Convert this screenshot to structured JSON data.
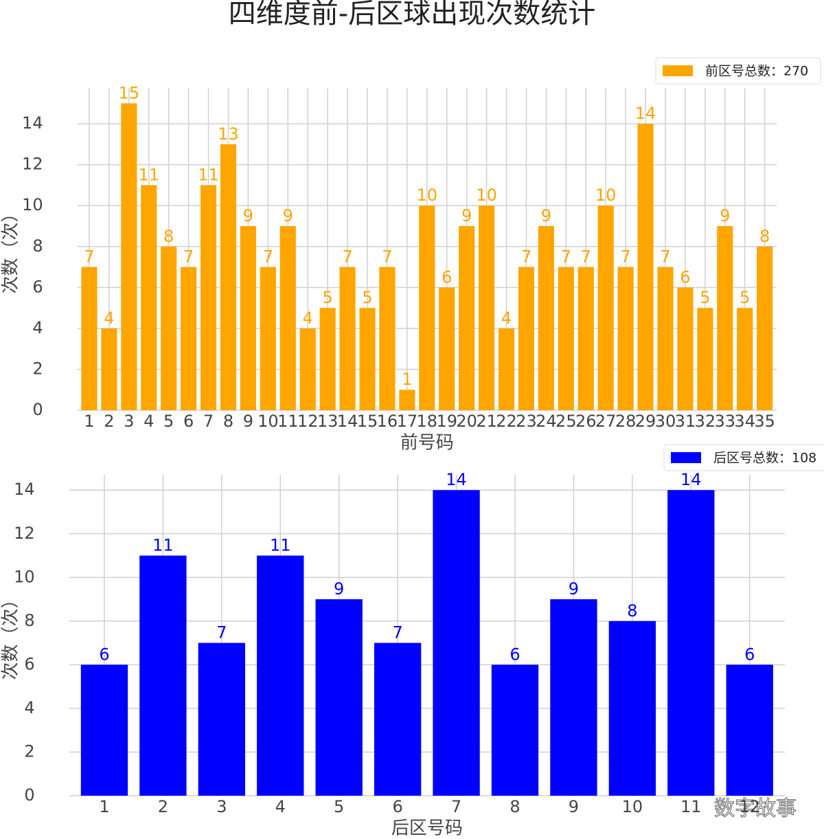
{
  "title": "四维度前-后区球出现次数统计",
  "watermark": "数字故事",
  "chart_data": [
    {
      "type": "bar",
      "x_label": "前号码",
      "y_label": "次数（次）",
      "legend_label": "前区号总数：270",
      "color": "#ffa500",
      "x": [
        1,
        2,
        3,
        4,
        5,
        6,
        7,
        8,
        9,
        10,
        11,
        12,
        13,
        14,
        15,
        16,
        17,
        18,
        19,
        20,
        21,
        22,
        23,
        24,
        25,
        26,
        27,
        28,
        29,
        30,
        31,
        32,
        33,
        34,
        35
      ],
      "values": [
        7,
        4,
        15,
        11,
        8,
        7,
        11,
        13,
        9,
        7,
        9,
        4,
        5,
        7,
        5,
        7,
        1,
        10,
        6,
        9,
        10,
        4,
        7,
        9,
        7,
        7,
        10,
        7,
        14,
        7,
        6,
        5,
        9,
        5,
        8
      ],
      "xlim": [
        0.4,
        35.6
      ],
      "ylim": [
        0,
        15.75
      ],
      "yticks": [
        0,
        2,
        4,
        6,
        8,
        10,
        12,
        14
      ],
      "xticks": [
        1,
        2,
        3,
        4,
        5,
        6,
        7,
        8,
        9,
        10,
        11,
        12,
        13,
        14,
        15,
        16,
        17,
        18,
        19,
        20,
        21,
        22,
        23,
        24,
        25,
        26,
        27,
        28,
        29,
        30,
        31,
        32,
        33,
        34,
        35
      ],
      "grid": true,
      "legend": "upper right"
    },
    {
      "type": "bar",
      "x_label": "后区号码",
      "y_label": "次数（次）",
      "legend_label": "后区号总数：108",
      "color": "#0000ff",
      "x": [
        1,
        2,
        3,
        4,
        5,
        6,
        7,
        8,
        9,
        10,
        11,
        12
      ],
      "values": [
        6,
        11,
        7,
        11,
        9,
        7,
        14,
        6,
        9,
        8,
        14,
        6
      ],
      "xlim": [
        0.4,
        12.6
      ],
      "ylim": [
        0,
        14.7
      ],
      "yticks": [
        0,
        2,
        4,
        6,
        8,
        10,
        12,
        14
      ],
      "xticks": [
        1,
        2,
        3,
        4,
        5,
        6,
        7,
        8,
        9,
        10,
        11,
        12
      ],
      "grid": true,
      "legend": "upper right"
    }
  ]
}
